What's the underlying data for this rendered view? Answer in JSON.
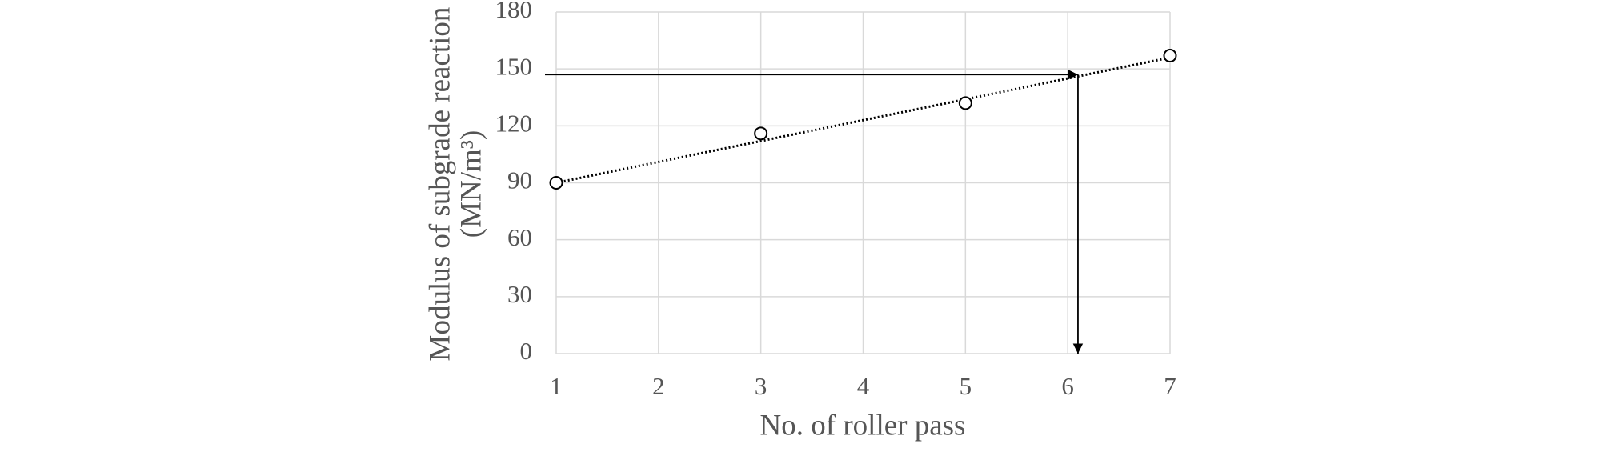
{
  "chart_data": {
    "type": "scatter",
    "x_label": "No. of roller pass",
    "y_label": [
      "Modulus of subgrade  reaction",
      "(MN/m³)"
    ],
    "x": [
      1,
      3,
      5,
      7
    ],
    "values": [
      90,
      116,
      132,
      157
    ],
    "xlim": [
      1,
      7
    ],
    "xticks": [
      1,
      2,
      3,
      4,
      5,
      6,
      7
    ],
    "ylim": [
      0,
      180
    ],
    "yticks": [
      0,
      30,
      60,
      90,
      120,
      150,
      180
    ],
    "grid": true,
    "trendline": {
      "x": [
        1,
        7
      ],
      "y": [
        90,
        156
      ]
    },
    "reference": {
      "x": 6.1,
      "y": 147
    }
  }
}
